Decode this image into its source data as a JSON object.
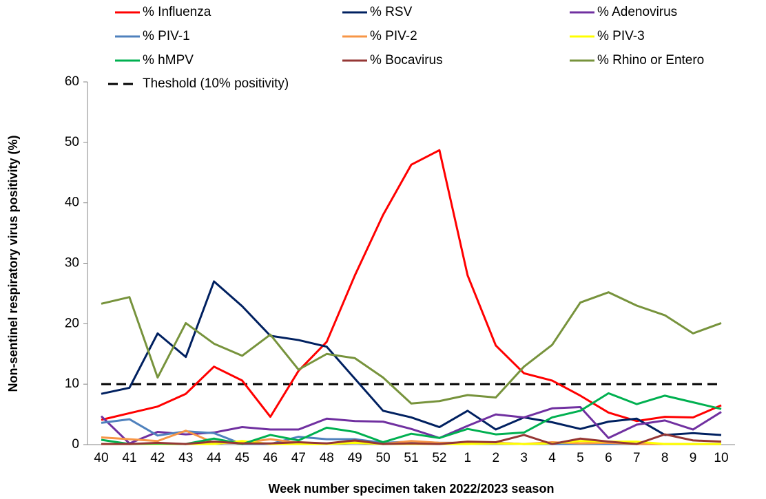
{
  "chart_data": {
    "type": "line",
    "x_label": "Week number specimen taken 2022/2023 season",
    "y_label": "Non-sentinel respiratory virus positivity (%)",
    "categories": [
      "40",
      "41",
      "42",
      "43",
      "44",
      "45",
      "46",
      "47",
      "48",
      "49",
      "50",
      "51",
      "52",
      "1",
      "2",
      "3",
      "4",
      "5",
      "6",
      "7",
      "8",
      "9",
      "10"
    ],
    "ylim": [
      0,
      60
    ],
    "yticks": [
      0,
      10,
      20,
      30,
      40,
      50,
      60
    ],
    "series": [
      {
        "name": "% Influenza",
        "color": "#ff0000",
        "values": [
          4.1,
          5.2,
          6.3,
          8.4,
          12.9,
          10.6,
          4.6,
          12.2,
          17.0,
          28.0,
          38.0,
          46.3,
          48.7,
          28.0,
          16.4,
          11.8,
          10.6,
          8.1,
          5.3,
          3.9,
          4.6,
          4.5,
          6.5
        ]
      },
      {
        "name": "% RSV",
        "color": "#002060",
        "values": [
          8.4,
          9.4,
          18.4,
          14.5,
          27.0,
          22.9,
          18.0,
          17.3,
          16.2,
          10.9,
          5.6,
          4.5,
          2.9,
          5.6,
          2.5,
          4.5,
          3.7,
          2.6,
          3.8,
          4.3,
          1.6,
          1.9,
          1.6
        ]
      },
      {
        "name": "% Adenovirus",
        "color": "#7030a0",
        "values": [
          4.7,
          0.2,
          2.1,
          1.7,
          2.0,
          2.9,
          2.5,
          2.5,
          4.3,
          3.9,
          3.8,
          2.6,
          1.1,
          3.1,
          5.0,
          4.5,
          6.0,
          6.2,
          1.1,
          3.3,
          4.0,
          2.5,
          5.4
        ]
      },
      {
        "name": "% PIV-1",
        "color": "#4f81bd",
        "values": [
          3.6,
          4.2,
          1.5,
          2.2,
          1.9,
          0.1,
          0.1,
          1.3,
          0.9,
          0.9,
          0.3,
          0.5,
          0.3,
          0.3,
          0.3,
          0.1,
          0.1,
          0.1,
          0.1,
          0.1,
          0.1,
          0.1,
          0.1
        ]
      },
      {
        "name": "% PIV-2",
        "color": "#f79646",
        "values": [
          1.2,
          0.9,
          0.6,
          2.3,
          0.3,
          0.3,
          0.9,
          0.3,
          0.2,
          0.5,
          0.1,
          0.6,
          0.3,
          0.3,
          0.3,
          0.1,
          0.4,
          0.2,
          0.3,
          0.1,
          0.1,
          0.1,
          0.1
        ]
      },
      {
        "name": "% PIV-3",
        "color": "#ffff00",
        "values": [
          0.1,
          0.1,
          0.1,
          0.1,
          0.1,
          0.6,
          0.1,
          0.1,
          0.1,
          0.3,
          0.1,
          0.1,
          0.1,
          0.1,
          0.2,
          0.1,
          0.2,
          0.6,
          0.5,
          0.5,
          0.1,
          0.1,
          0.1
        ]
      },
      {
        "name": "% hMPV",
        "color": "#00b050",
        "values": [
          0.8,
          0.1,
          0.2,
          0.1,
          1.0,
          0.1,
          1.6,
          0.7,
          2.8,
          2.1,
          0.4,
          1.8,
          1.1,
          2.6,
          1.7,
          2.0,
          4.5,
          5.6,
          8.5,
          6.7,
          8.1,
          7.0,
          5.9
        ]
      },
      {
        "name": "% Bocavirus",
        "color": "#953735",
        "values": [
          0.1,
          0.1,
          0.3,
          0.1,
          0.5,
          0.2,
          0.2,
          0.4,
          0.2,
          0.7,
          0.1,
          0.2,
          0.1,
          0.5,
          0.4,
          1.6,
          0.1,
          1.0,
          0.5,
          0.1,
          1.7,
          0.7,
          0.5
        ]
      },
      {
        "name": "% Rhino or Entero",
        "color": "#77933c",
        "values": [
          23.3,
          24.4,
          11.1,
          20.1,
          16.7,
          14.7,
          18.2,
          12.4,
          15.0,
          14.3,
          11.1,
          6.8,
          7.2,
          8.2,
          7.8,
          12.9,
          16.5,
          23.5,
          25.2,
          23.0,
          21.4,
          18.4,
          20.1
        ]
      }
    ],
    "threshold": {
      "name": "Theshold (10% positivity)",
      "value": 10,
      "color": "#000000"
    }
  }
}
